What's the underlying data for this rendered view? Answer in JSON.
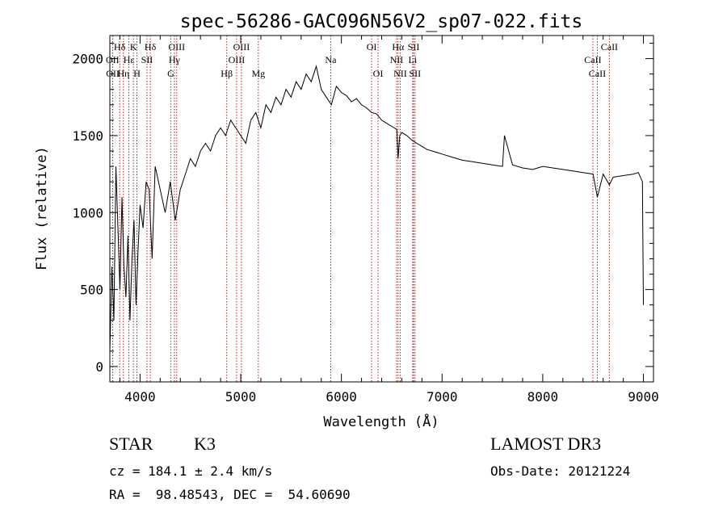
{
  "chart_data": {
    "type": "line",
    "title": "spec-56286-GAC096N56V2_sp07-022.fits",
    "xlabel": "Wavelength (Å)",
    "ylabel": "Flux (relative)",
    "xlim": [
      3700,
      9100
    ],
    "ylim": [
      -100,
      2150
    ],
    "xticks": [
      4000,
      5000,
      6000,
      7000,
      8000,
      9000
    ],
    "xtick_labels": [
      "4000",
      "5000",
      "6000",
      "7000",
      "8000",
      "9000"
    ],
    "yticks": [
      0,
      500,
      1000,
      1500,
      2000
    ],
    "ytick_labels": [
      "0",
      "500",
      "1000",
      "1500",
      "2000"
    ],
    "line_color": "#000000",
    "marker_color": "#b22222",
    "series": [
      {
        "x": [
          3700,
          3720,
          3740,
          3760,
          3780,
          3800,
          3820,
          3840,
          3860,
          3880,
          3900,
          3920,
          3940,
          3960,
          3980,
          4000,
          4030,
          4060,
          4090,
          4120,
          4150,
          4200,
          4250,
          4300,
          4350,
          4400,
          4450,
          4500,
          4550,
          4600,
          4650,
          4700,
          4750,
          4800,
          4850,
          4900,
          4950,
          5000,
          5050,
          5100,
          5150,
          5200,
          5250,
          5300,
          5350,
          5400,
          5450,
          5500,
          5550,
          5600,
          5650,
          5700,
          5750,
          5800,
          5850,
          5900,
          5950,
          6000,
          6050,
          6100,
          6150,
          6200,
          6250,
          6300,
          6350,
          6400,
          6450,
          6500,
          6550,
          6563,
          6580,
          6600,
          6650,
          6700,
          6750,
          6800,
          6850,
          6900,
          6950,
          7000,
          7100,
          7200,
          7300,
          7400,
          7500,
          7600,
          7620,
          7700,
          7800,
          7900,
          8000,
          8100,
          8200,
          8300,
          8400,
          8500,
          8542,
          8600,
          8662,
          8700,
          8800,
          8900,
          8950,
          8990,
          9000
        ],
        "y": [
          100,
          650,
          300,
          1300,
          900,
          500,
          1100,
          650,
          450,
          850,
          300,
          700,
          950,
          400,
          750,
          1050,
          900,
          1200,
          1150,
          700,
          1300,
          1150,
          1000,
          1200,
          950,
          1150,
          1250,
          1350,
          1300,
          1400,
          1450,
          1400,
          1500,
          1550,
          1500,
          1600,
          1550,
          1500,
          1450,
          1600,
          1650,
          1550,
          1700,
          1650,
          1750,
          1700,
          1800,
          1750,
          1850,
          1800,
          1900,
          1850,
          1950,
          1800,
          1750,
          1700,
          1820,
          1780,
          1760,
          1720,
          1740,
          1700,
          1680,
          1650,
          1640,
          1600,
          1580,
          1560,
          1540,
          1350,
          1500,
          1520,
          1500,
          1470,
          1450,
          1430,
          1410,
          1400,
          1390,
          1380,
          1360,
          1340,
          1330,
          1320,
          1310,
          1300,
          1500,
          1310,
          1290,
          1280,
          1300,
          1290,
          1280,
          1270,
          1260,
          1250,
          1100,
          1250,
          1180,
          1230,
          1240,
          1250,
          1260,
          1200,
          400
        ]
      }
    ],
    "line_markers": [
      {
        "label": "Hδ",
        "wavelength": 3798,
        "row": 1
      },
      {
        "label": "OII",
        "wavelength": 3727,
        "row": 2
      },
      {
        "label": "Hε",
        "wavelength": 3889,
        "row": 2
      },
      {
        "label": "Hη",
        "wavelength": 3835,
        "row": 3
      },
      {
        "label": "OII",
        "wavelength": 3729,
        "row": 3
      },
      {
        "label": "K",
        "wavelength": 3934,
        "row": 1
      },
      {
        "label": "SII",
        "wavelength": 4069,
        "row": 2
      },
      {
        "label": "H",
        "wavelength": 3969,
        "row": 3
      },
      {
        "label": "Hδ",
        "wavelength": 4102,
        "row": 1
      },
      {
        "label": "OIII",
        "wavelength": 4364,
        "row": 1
      },
      {
        "label": "Hγ",
        "wavelength": 4341,
        "row": 2
      },
      {
        "label": "G",
        "wavelength": 4305,
        "row": 3
      },
      {
        "label": "Hβ",
        "wavelength": 4861,
        "row": 3
      },
      {
        "label": "OIII",
        "wavelength": 5007,
        "row": 1
      },
      {
        "label": "OIII",
        "wavelength": 4959,
        "row": 2
      },
      {
        "label": "Mg",
        "wavelength": 5175,
        "row": 3
      },
      {
        "label": "Na",
        "wavelength": 5894,
        "row": 2
      },
      {
        "label": "OI",
        "wavelength": 6300,
        "row": 1
      },
      {
        "label": "OI",
        "wavelength": 6364,
        "row": 3
      },
      {
        "label": "Hα",
        "wavelength": 6563,
        "row": 1
      },
      {
        "label": "NII",
        "wavelength": 6548,
        "row": 2
      },
      {
        "label": "NII",
        "wavelength": 6584,
        "row": 3
      },
      {
        "label": "SII",
        "wavelength": 6717,
        "row": 1
      },
      {
        "label": "Li",
        "wavelength": 6708,
        "row": 2
      },
      {
        "label": "SII",
        "wavelength": 6731,
        "row": 3
      },
      {
        "label": "CaII",
        "wavelength": 8662,
        "row": 1
      },
      {
        "label": "CaII",
        "wavelength": 8498,
        "row": 2
      },
      {
        "label": "CaII",
        "wavelength": 8542,
        "row": 3
      }
    ]
  },
  "footer": {
    "object_class": "STAR",
    "subclass": "K3",
    "survey": "LAMOST DR3",
    "redshift": "cz = 184.1 ± 2.4 km/s",
    "obs_date": "Obs-Date: 20121224",
    "coords": "RA =  98.48543, DEC =  54.60690"
  }
}
